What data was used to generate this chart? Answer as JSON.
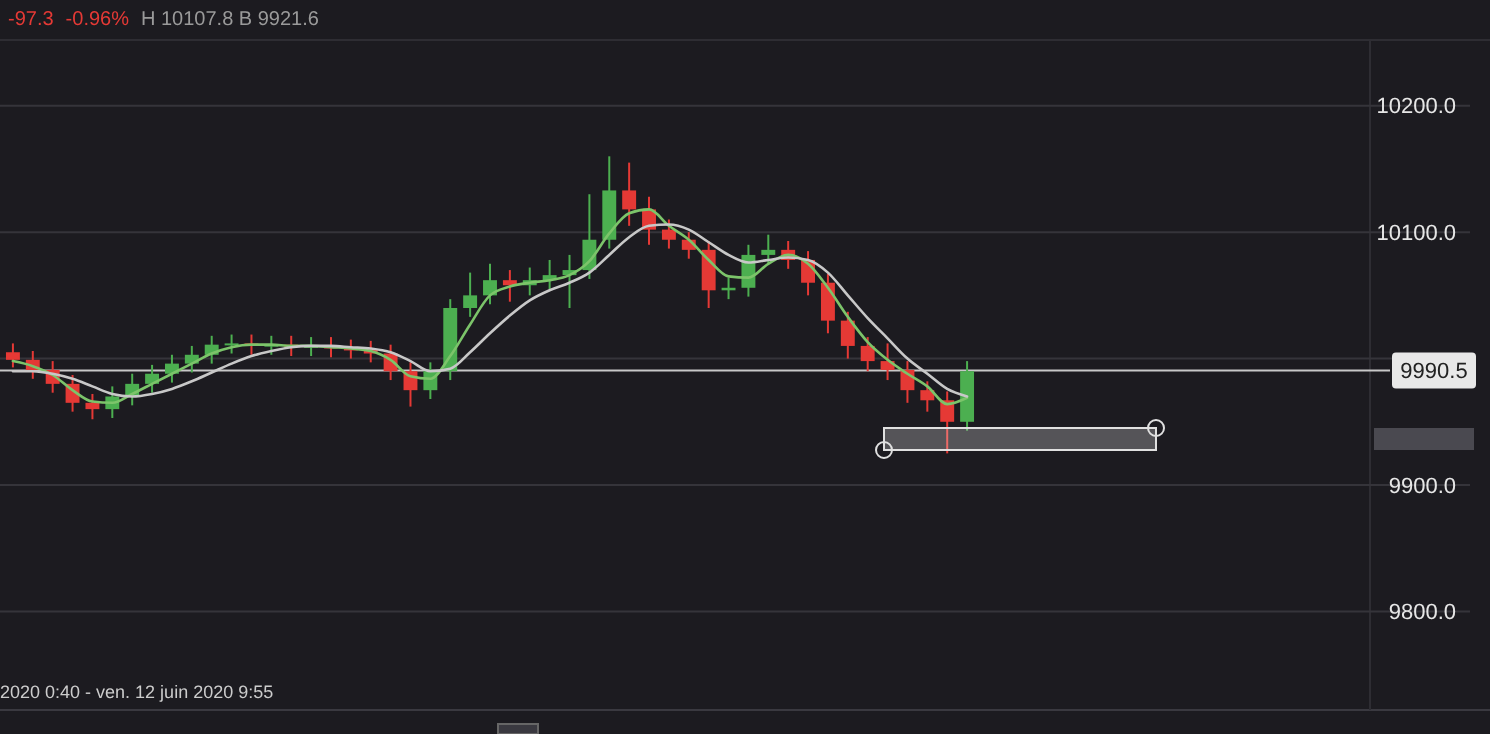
{
  "chart_data": {
    "type": "candlestick",
    "categories": [
      null,
      null,
      null,
      null,
      null,
      null,
      null,
      null,
      null,
      null,
      null,
      null,
      null,
      null,
      null,
      null,
      null,
      null,
      null,
      null,
      null,
      null,
      null,
      null,
      null,
      null,
      null,
      null,
      null,
      null,
      null,
      null,
      null,
      null,
      null,
      null,
      null,
      null,
      null,
      null,
      null,
      null,
      null,
      null,
      null,
      null,
      null,
      null,
      null
    ],
    "ohlc": [
      [
        10005,
        10012,
        9993,
        9999
      ],
      [
        9999,
        10006,
        9984,
        9991
      ],
      [
        9991,
        9998,
        9973,
        9980
      ],
      [
        9980,
        9987,
        9958,
        9965
      ],
      [
        9965,
        9972,
        9952,
        9960
      ],
      [
        9960,
        9978,
        9953,
        9970
      ],
      [
        9970,
        9988,
        9963,
        9980
      ],
      [
        9980,
        9995,
        9973,
        9988
      ],
      [
        9988,
        10003,
        9981,
        9996
      ],
      [
        9996,
        10010,
        9989,
        10003
      ],
      [
        10003,
        10018,
        9996,
        10011
      ],
      [
        10011,
        10019,
        10004,
        10012
      ],
      [
        10012,
        10019,
        10003,
        10010
      ],
      [
        10010,
        10018,
        10003,
        10011
      ],
      [
        10011,
        10018,
        10002,
        10009
      ],
      [
        10009,
        10017,
        10002,
        10010
      ],
      [
        10010,
        10017,
        10001,
        10008
      ],
      [
        10008,
        10015,
        10000,
        10007
      ],
      [
        10007,
        10014,
        9997,
        10004
      ],
      [
        10004,
        10011,
        9983,
        9990
      ],
      [
        9990,
        9997,
        9962,
        9975
      ],
      [
        9975,
        9997,
        9968,
        9990
      ],
      [
        9990,
        10047,
        9983,
        10040
      ],
      [
        10040,
        10068,
        10033,
        10050
      ],
      [
        10050,
        10075,
        10043,
        10062
      ],
      [
        10062,
        10070,
        10045,
        10058
      ],
      [
        10058,
        10072,
        10050,
        10062
      ],
      [
        10062,
        10078,
        10055,
        10066
      ],
      [
        10066,
        10082,
        10040,
        10070
      ],
      [
        10070,
        10130,
        10063,
        10094
      ],
      [
        10094,
        10160,
        10087,
        10133
      ],
      [
        10133,
        10155,
        10105,
        10118
      ],
      [
        10118,
        10128,
        10090,
        10102
      ],
      [
        10102,
        10110,
        10087,
        10094
      ],
      [
        10094,
        10100,
        10079,
        10086
      ],
      [
        10086,
        10093,
        10040,
        10054
      ],
      [
        10054,
        10064,
        10047,
        10056
      ],
      [
        10056,
        10090,
        10049,
        10082
      ],
      [
        10082,
        10098,
        10075,
        10086
      ],
      [
        10086,
        10093,
        10071,
        10078
      ],
      [
        10078,
        10085,
        10050,
        10060
      ],
      [
        10060,
        10067,
        10020,
        10030
      ],
      [
        10030,
        10037,
        10000,
        10010
      ],
      [
        10010,
        10017,
        9990,
        9998
      ],
      [
        9998,
        10012,
        9983,
        9991
      ],
      [
        9991,
        9998,
        9965,
        9975
      ],
      [
        9975,
        9982,
        9958,
        9967
      ],
      [
        9967,
        9974,
        9925,
        9950
      ],
      [
        9950,
        9998,
        9943,
        9990
      ]
    ],
    "colors": [
      "#e53935",
      "#e53935",
      "#e53935",
      "#e53935",
      "#e53935",
      "#4caf50",
      "#4caf50",
      "#4caf50",
      "#4caf50",
      "#4caf50",
      "#4caf50",
      "#4caf50",
      "#e53935",
      "#4caf50",
      "#e53935",
      "#4caf50",
      "#e53935",
      "#e53935",
      "#e53935",
      "#e53935",
      "#e53935",
      "#4caf50",
      "#4caf50",
      "#4caf50",
      "#4caf50",
      "#e53935",
      "#4caf50",
      "#4caf50",
      "#4caf50",
      "#4caf50",
      "#4caf50",
      "#e53935",
      "#e53935",
      "#e53935",
      "#e53935",
      "#e53935",
      "#4caf50",
      "#4caf50",
      "#4caf50",
      "#e53935",
      "#e53935",
      "#e53935",
      "#e53935",
      "#e53935",
      "#e53935",
      "#e53935",
      "#e53935",
      "#e53935",
      "#4caf50"
    ],
    "series": [
      {
        "type": "line",
        "color": "#7cc46a",
        "values": [
          9998,
          9994,
          9987,
          9975,
          9966,
          9965,
          9972,
          9980,
          9988,
          9996,
          10004,
          10009,
          10011,
          10011,
          10010,
          10010,
          10009,
          10008,
          10006,
          9999,
          9986,
          9984,
          10002,
          10027,
          10050,
          10057,
          10060,
          10062,
          10066,
          10077,
          10099,
          10115,
          10118,
          10105,
          10094,
          10078,
          10065,
          10064,
          10075,
          10082,
          10075,
          10056,
          10033,
          10013,
          9999,
          9988,
          9978,
          9964,
          9969
        ]
      },
      {
        "type": "line",
        "color": "#c8c8c8",
        "values": [
          9990,
          9990,
          9988,
          9984,
          9978,
          9972,
          9970,
          9972,
          9976,
          9982,
          9989,
          9996,
          10002,
          10006,
          10009,
          10010,
          10010,
          10009,
          10008,
          10005,
          9998,
          9990,
          9992,
          10005,
          10020,
          10034,
          10046,
          10054,
          10060,
          10068,
          10082,
          10096,
          10105,
          10106,
          10102,
          10092,
          10082,
          10076,
          10078,
          10080,
          10078,
          10068,
          10050,
          10032,
          10016,
          10000,
          9988,
          9976,
          9970
        ]
      }
    ],
    "ylim": [
      9722,
      10252
    ],
    "yticks": [
      {
        "value": 9800,
        "label": "9800.0"
      },
      {
        "value": 9900,
        "label": "9900.0"
      },
      {
        "value": 10000,
        "label": null
      },
      {
        "value": 10100,
        "label": "10100.0"
      },
      {
        "value": 10200,
        "label": "10200.0"
      }
    ],
    "grid": "y",
    "tick_labels": "y",
    "ref_lines": [
      {
        "axis": "y",
        "value": 9990.5,
        "label": "9990.5",
        "color": "#c8c8c8"
      }
    ],
    "annotations": [
      "-97.3",
      "-0.96%",
      "H 10107.8 B 9921.6",
      "2020 0:40 - ven. 12 juin 2020 9:55"
    ]
  }
}
